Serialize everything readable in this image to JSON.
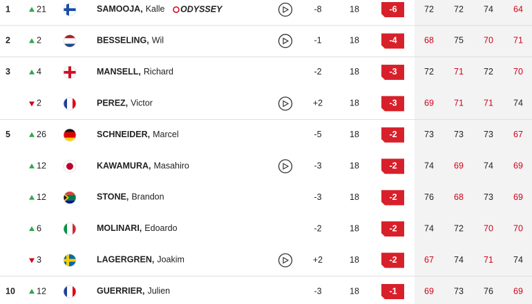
{
  "table": {
    "rows": [
      {
        "pos": "1",
        "move": {
          "dir": "up",
          "n": "21"
        },
        "last": "SAMOOJA,",
        "first": "Kalle",
        "sponsor": "ODYSSEY",
        "video": true,
        "topar": "-8",
        "thru": "18",
        "today": "-6",
        "rounds": [
          {
            "s": "72",
            "c": "#222"
          },
          {
            "s": "72",
            "c": "#222"
          },
          {
            "s": "74",
            "c": "#222"
          },
          {
            "s": "64",
            "c": "#d0021b"
          }
        ]
      },
      {
        "pos": "2",
        "move": {
          "dir": "up",
          "n": "2"
        },
        "last": "BESSELING,",
        "first": "Wil",
        "video": true,
        "topar": "-1",
        "thru": "18",
        "today": "-4",
        "rounds": [
          {
            "s": "68",
            "c": "#d0021b"
          },
          {
            "s": "75",
            "c": "#222"
          },
          {
            "s": "70",
            "c": "#d0021b"
          },
          {
            "s": "71",
            "c": "#d0021b"
          }
        ]
      },
      {
        "pos": "3",
        "move": {
          "dir": "up",
          "n": "4"
        },
        "last": "MANSELL,",
        "first": "Richard",
        "video": false,
        "topar": "-2",
        "thru": "18",
        "today": "-3",
        "rounds": [
          {
            "s": "72",
            "c": "#222"
          },
          {
            "s": "71",
            "c": "#d0021b"
          },
          {
            "s": "72",
            "c": "#222"
          },
          {
            "s": "70",
            "c": "#d0021b"
          }
        ]
      },
      {
        "move": {
          "dir": "down",
          "n": "2"
        },
        "last": "PEREZ,",
        "first": "Victor",
        "video": true,
        "topar": "+2",
        "thru": "18",
        "today": "-3",
        "rounds": [
          {
            "s": "69",
            "c": "#d0021b"
          },
          {
            "s": "71",
            "c": "#d0021b"
          },
          {
            "s": "71",
            "c": "#d0021b"
          },
          {
            "s": "74",
            "c": "#222"
          }
        ]
      },
      {
        "pos": "5",
        "move": {
          "dir": "up",
          "n": "26"
        },
        "last": "SCHNEIDER,",
        "first": "Marcel",
        "video": false,
        "topar": "-5",
        "thru": "18",
        "today": "-2",
        "rounds": [
          {
            "s": "73",
            "c": "#222"
          },
          {
            "s": "73",
            "c": "#222"
          },
          {
            "s": "73",
            "c": "#222"
          },
          {
            "s": "67",
            "c": "#d0021b"
          }
        ]
      },
      {
        "move": {
          "dir": "up",
          "n": "12"
        },
        "last": "KAWAMURA,",
        "first": "Masahiro",
        "video": true,
        "topar": "-3",
        "thru": "18",
        "today": "-2",
        "rounds": [
          {
            "s": "74",
            "c": "#222"
          },
          {
            "s": "69",
            "c": "#d0021b"
          },
          {
            "s": "74",
            "c": "#222"
          },
          {
            "s": "69",
            "c": "#d0021b"
          }
        ]
      },
      {
        "move": {
          "dir": "up",
          "n": "12"
        },
        "last": "STONE,",
        "first": "Brandon",
        "video": false,
        "topar": "-3",
        "thru": "18",
        "today": "-2",
        "rounds": [
          {
            "s": "76",
            "c": "#222"
          },
          {
            "s": "68",
            "c": "#d0021b"
          },
          {
            "s": "73",
            "c": "#222"
          },
          {
            "s": "69",
            "c": "#d0021b"
          }
        ]
      },
      {
        "move": {
          "dir": "up",
          "n": "6"
        },
        "last": "MOLINARI,",
        "first": "Edoardo",
        "video": false,
        "topar": "-2",
        "thru": "18",
        "today": "-2",
        "rounds": [
          {
            "s": "74",
            "c": "#222"
          },
          {
            "s": "72",
            "c": "#222"
          },
          {
            "s": "70",
            "c": "#d0021b"
          },
          {
            "s": "70",
            "c": "#d0021b"
          }
        ]
      },
      {
        "move": {
          "dir": "down",
          "n": "3"
        },
        "last": "LAGERGREN,",
        "first": "Joakim",
        "video": true,
        "topar": "+2",
        "thru": "18",
        "today": "-2",
        "rounds": [
          {
            "s": "67",
            "c": "#d0021b"
          },
          {
            "s": "74",
            "c": "#222"
          },
          {
            "s": "71",
            "c": "#d0021b"
          },
          {
            "s": "74",
            "c": "#222"
          }
        ]
      },
      {
        "pos": "10",
        "move": {
          "dir": "up",
          "n": "12"
        },
        "last": "GUERRIER,",
        "first": "Julien",
        "video": false,
        "topar": "-3",
        "thru": "18",
        "today": "-1",
        "rounds": [
          {
            "s": "69",
            "c": "#d0021b"
          },
          {
            "s": "73",
            "c": "#222"
          },
          {
            "s": "76",
            "c": "#222"
          },
          {
            "s": "69",
            "c": "#d0021b"
          }
        ]
      }
    ]
  }
}
